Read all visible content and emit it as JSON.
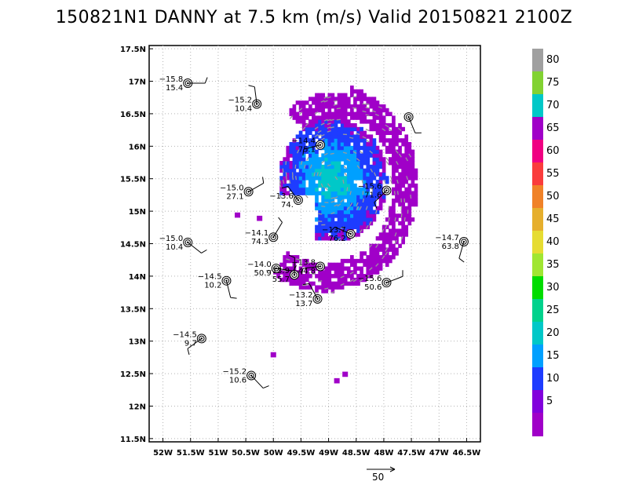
{
  "title": "150821N1 DANNY at 7.5 km (m/s) Valid 20150821  2100Z",
  "map": {
    "lon_range": [
      -52.25,
      -46.25
    ],
    "lat_range": [
      11.45,
      17.55
    ],
    "x_ticks": [
      "52W",
      "51.5W",
      "51W",
      "50.5W",
      "50W",
      "49.5W",
      "49W",
      "48.5W",
      "48W",
      "47.5W",
      "47W",
      "46.5W"
    ],
    "x_tick_values": [
      -52,
      -51.5,
      -51,
      -50.5,
      -50,
      -49.5,
      -49,
      -48.5,
      -48,
      -47.5,
      -47,
      -46.5
    ],
    "y_ticks": [
      "11.5N",
      "12N",
      "12.5N",
      "13N",
      "13.5N",
      "14N",
      "14.5N",
      "15N",
      "15.5N",
      "16N",
      "16.5N",
      "17N",
      "17.5N"
    ],
    "y_tick_values": [
      11.5,
      12,
      12.5,
      13,
      13.5,
      14,
      14.5,
      15,
      15.5,
      16,
      16.5,
      17,
      17.5
    ],
    "grid": true,
    "center": [
      -48.95,
      15.45
    ]
  },
  "colorbar": {
    "labels": [
      "5",
      "10",
      "15",
      "20",
      "25",
      "30",
      "35",
      "40",
      "45",
      "50",
      "55",
      "60",
      "65",
      "70",
      "75",
      "80"
    ],
    "colors": [
      "#a000c8",
      "#8200dc",
      "#1e3cff",
      "#00a0ff",
      "#00c8c8",
      "#00d28c",
      "#00dc00",
      "#a0e632",
      "#e6dc32",
      "#e6af2d",
      "#f08228",
      "#fa3c3c",
      "#f00082",
      "#a000c8",
      "#00c8c8",
      "#82d232",
      "#a0a0a0"
    ]
  },
  "observations": [
    {
      "lon": -51.55,
      "lat": 16.97,
      "temp": "−15.8",
      "wind": "15.4"
    },
    {
      "lon": -50.3,
      "lat": 16.65,
      "temp": "−15.2",
      "wind": "10.4"
    },
    {
      "lon": -49.15,
      "lat": 16.02,
      "temp": "−14.4",
      "wind": "75.1"
    },
    {
      "lon": -47.55,
      "lat": 16.45,
      "temp": "",
      "wind": ""
    },
    {
      "lon": -50.45,
      "lat": 15.3,
      "temp": "−15.0",
      "wind": "27.1"
    },
    {
      "lon": -49.55,
      "lat": 15.17,
      "temp": "−13.6",
      "wind": "74."
    },
    {
      "lon": -47.95,
      "lat": 15.32,
      "temp": "−15.6",
      "wind": "71.6"
    },
    {
      "lon": -51.55,
      "lat": 14.52,
      "temp": "−15.0",
      "wind": "10.4"
    },
    {
      "lon": -50.0,
      "lat": 14.6,
      "temp": "−14.1",
      "wind": "74.3"
    },
    {
      "lon": -48.6,
      "lat": 14.65,
      "temp": "−13.7",
      "wind": "76.2"
    },
    {
      "lon": -46.55,
      "lat": 14.53,
      "temp": "−14.7",
      "wind": "63.8"
    },
    {
      "lon": -49.95,
      "lat": 14.12,
      "temp": "−14.0",
      "wind": "50.9"
    },
    {
      "lon": -49.62,
      "lat": 14.02,
      "temp": "−13.9",
      "wind": "55.7"
    },
    {
      "lon": -49.15,
      "lat": 14.15,
      "temp": "−13.8",
      "wind": "44.8"
    },
    {
      "lon": -50.85,
      "lat": 13.93,
      "temp": "−14.5",
      "wind": "10.2"
    },
    {
      "lon": -47.95,
      "lat": 13.9,
      "temp": "−15.6",
      "wind": "50.6"
    },
    {
      "lon": -49.2,
      "lat": 13.65,
      "temp": "−13.2",
      "wind": "13.7"
    },
    {
      "lon": -51.3,
      "lat": 13.04,
      "temp": "−14.5",
      "wind": "9.7"
    },
    {
      "lon": -50.4,
      "lat": 12.47,
      "temp": "−15.2",
      "wind": "10.6"
    }
  ],
  "reference_vector": {
    "label": "50"
  }
}
